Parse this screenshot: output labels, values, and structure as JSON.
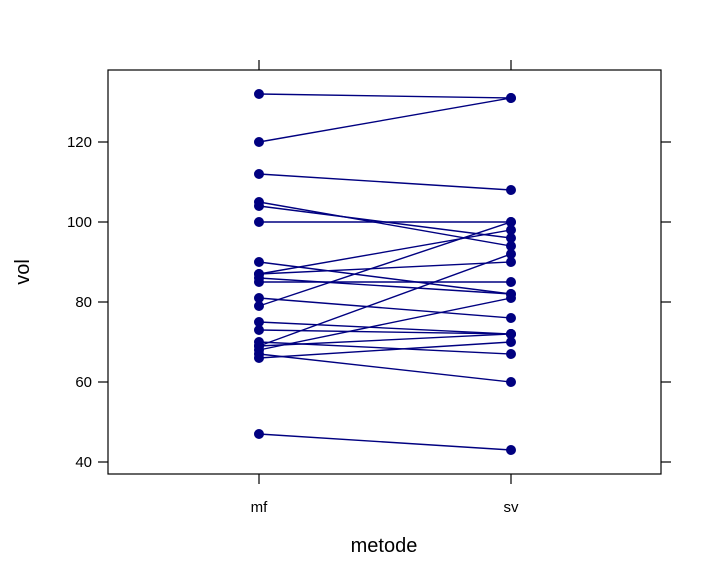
{
  "chart_data": {
    "type": "line",
    "title": "",
    "xlabel": "metode",
    "ylabel": "vol",
    "categories": [
      "mf",
      "sv"
    ],
    "ylim": [
      37,
      138
    ],
    "yticks": [
      40,
      60,
      80,
      100,
      120
    ],
    "grid": false,
    "line_color": "#000080",
    "point_color": "#000080",
    "pairs": [
      [
        132,
        131
      ],
      [
        120,
        131
      ],
      [
        112,
        108
      ],
      [
        105,
        94
      ],
      [
        104,
        96
      ],
      [
        100,
        100
      ],
      [
        90,
        82
      ],
      [
        87,
        98
      ],
      [
        87,
        90
      ],
      [
        86,
        82
      ],
      [
        85,
        85
      ],
      [
        81,
        76
      ],
      [
        79,
        100
      ],
      [
        75,
        72
      ],
      [
        73,
        72
      ],
      [
        70,
        67
      ],
      [
        69,
        92
      ],
      [
        69,
        72
      ],
      [
        68,
        81
      ],
      [
        67,
        60
      ],
      [
        66,
        70
      ],
      [
        47,
        43
      ]
    ]
  }
}
